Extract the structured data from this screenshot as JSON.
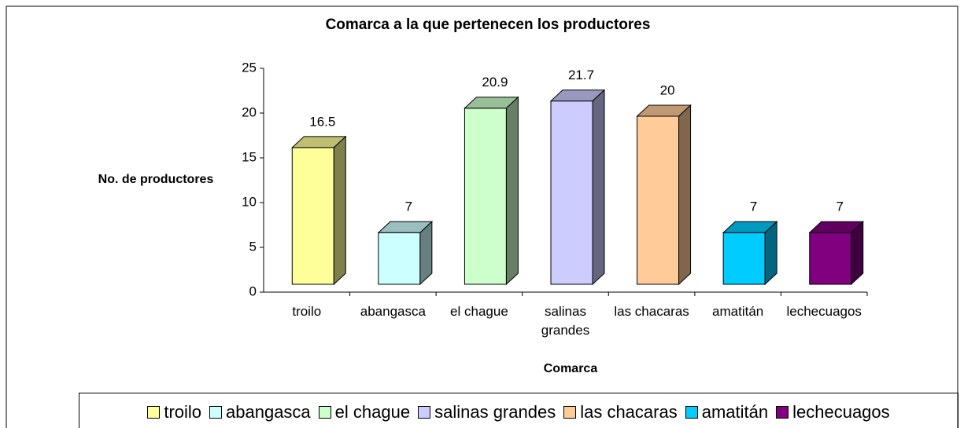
{
  "chart_data": {
    "type": "bar3d",
    "title": "Comarca a la que pertenecen los productores",
    "x_label": "Comarca",
    "y_label": "No. de productores",
    "categories": [
      "troilo",
      "abangasca",
      "el chague",
      "salinas grandes",
      "las chacaras",
      "amatitán",
      "lechecuagos"
    ],
    "values": [
      16.5,
      7,
      20.9,
      21.7,
      20,
      7,
      7
    ],
    "colors": [
      "#ffff99",
      "#ccffff",
      "#ccffcc",
      "#ccccff",
      "#ffcc99",
      "#00ccff",
      "#800080"
    ],
    "ylim": [
      0,
      25
    ],
    "yticks": [
      0,
      5,
      10,
      15,
      20,
      25
    ],
    "grid": false,
    "legend": "bottom"
  }
}
